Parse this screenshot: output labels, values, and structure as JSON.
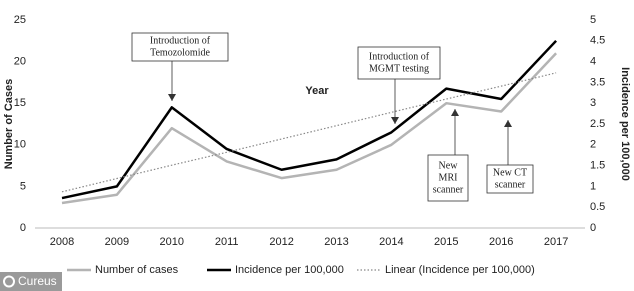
{
  "chart_data": {
    "type": "line",
    "categories": [
      "2008",
      "2009",
      "2010",
      "2011",
      "2012",
      "2013",
      "2014",
      "2015",
      "2016",
      "2017"
    ],
    "x_label": "Year",
    "y_label": "Number of Cases",
    "y2_label": "Incidence per 100,000",
    "ylim": [
      0,
      25
    ],
    "yticks": [
      0,
      5,
      10,
      15,
      20,
      25
    ],
    "y2lim": [
      0,
      5
    ],
    "y2ticks": [
      0,
      0.5,
      1,
      1.5,
      2,
      2.5,
      3,
      3.5,
      4,
      4.5,
      5
    ],
    "series": [
      {
        "name": "Number of cases",
        "color": "#b4b4b4",
        "values": [
          3,
          4,
          12,
          8,
          6,
          7,
          10,
          15,
          14,
          21
        ]
      },
      {
        "name": "Incidence per 100,000",
        "color": "#000000",
        "axis": "y2",
        "values": [
          0.72,
          1.0,
          2.9,
          1.9,
          1.4,
          1.65,
          2.3,
          3.35,
          3.1,
          4.5
        ]
      },
      {
        "name": "Linear (Incidence per 100,000)",
        "color": "#888888",
        "axis": "y2",
        "dashed": true,
        "values": [
          0.87,
          1.19,
          1.51,
          1.82,
          2.14,
          2.46,
          2.78,
          3.1,
          3.41,
          3.73
        ]
      }
    ],
    "annotations": [
      {
        "lines": [
          "Introduction of",
          "Temozolomide"
        ]
      },
      {
        "lines": [
          "Introduction of",
          "MGMT testing"
        ]
      },
      {
        "lines": [
          "New",
          "MRI",
          "scanner"
        ]
      },
      {
        "lines": [
          "New CT",
          "scanner"
        ]
      }
    ],
    "legend": "bottom",
    "watermark": "Cureus"
  }
}
